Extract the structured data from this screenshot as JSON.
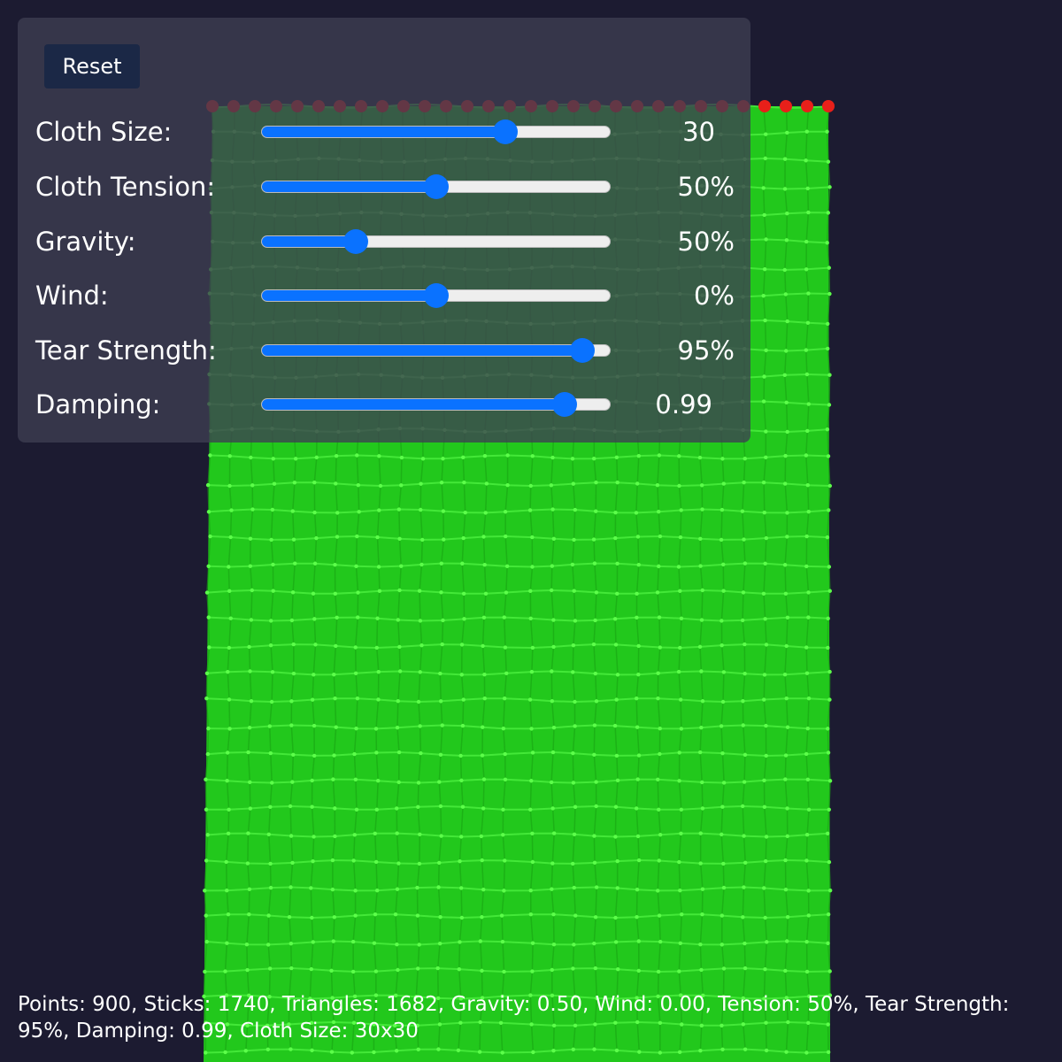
{
  "controls": {
    "reset": "Reset",
    "sliders": [
      {
        "label": "Cloth Size:",
        "value": "30"
      },
      {
        "label": "Cloth Tension:",
        "value": "50%"
      },
      {
        "label": "Gravity:",
        "value": "50%"
      },
      {
        "label": "Wind:",
        "value": "0%"
      },
      {
        "label": "Tear Strength:",
        "value": "95%"
      },
      {
        "label": "Damping:",
        "value": "0.99"
      }
    ]
  },
  "status": "Points: 900, Sticks: 1740, Triangles: 1682, Gravity: 0.50, Wind: 0.00, Tension: 50%, Tear Strength: 95%, Damping: 0.99, Cloth Size: 30x30"
}
